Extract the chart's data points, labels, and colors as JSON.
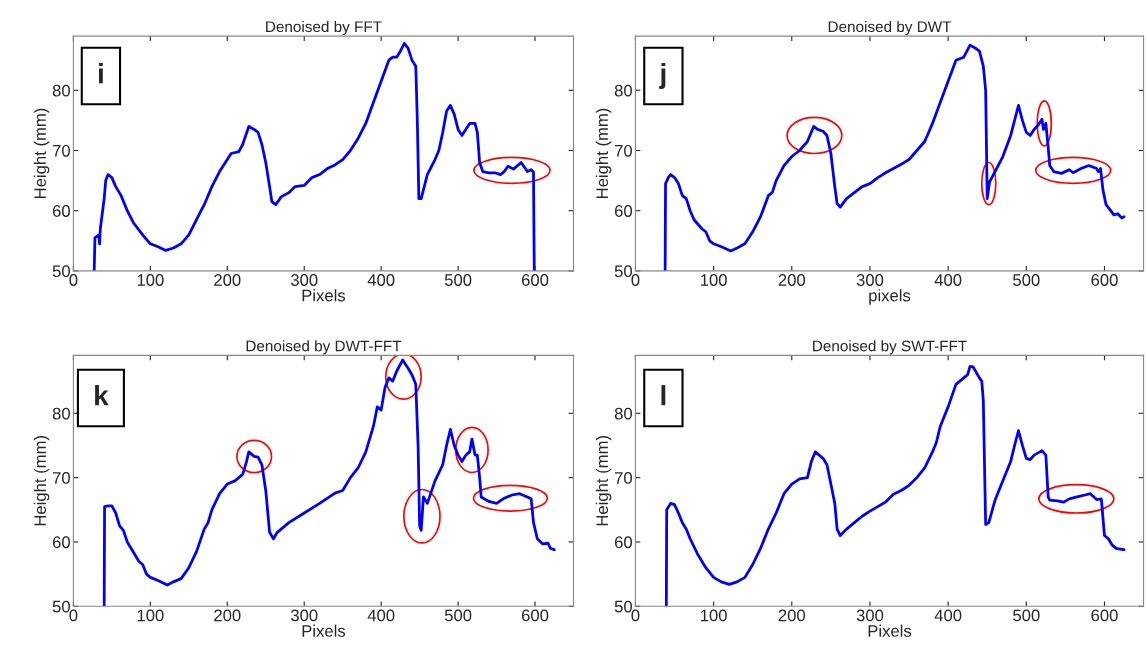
{
  "chart_data": [
    {
      "type": "line",
      "title": "Denoised by FFT",
      "xlabel": "Pixels",
      "ylabel": "Height (mm)",
      "xlim": [
        0,
        650
      ],
      "ylim": [
        50,
        89
      ],
      "xticks": [
        0,
        100,
        200,
        300,
        400,
        500,
        600
      ],
      "yticks": [
        50,
        60,
        70,
        80
      ],
      "annotations": [
        "i"
      ],
      "series": [
        {
          "color": "#0000ff",
          "x": [
            27,
            28,
            33,
            34,
            35,
            40,
            42,
            45,
            50,
            55,
            62,
            70,
            78,
            90,
            100,
            110,
            120,
            130,
            140,
            150,
            160,
            170,
            180,
            190,
            200,
            205,
            215,
            220,
            228,
            235,
            240,
            245,
            250,
            255,
            258,
            263,
            270,
            280,
            288,
            300,
            310,
            320,
            330,
            340,
            350,
            360,
            370,
            380,
            390,
            400,
            410,
            415,
            420,
            425,
            430,
            435,
            440,
            445,
            447,
            449,
            452,
            460,
            470,
            475,
            480,
            485,
            490,
            495,
            500,
            505,
            510,
            515,
            522,
            525,
            528,
            532,
            540,
            548,
            555,
            560,
            565,
            572,
            582,
            590,
            595,
            598,
            599
          ],
          "values": [
            50,
            55.5,
            56,
            54.5,
            57,
            62,
            65,
            66,
            65.5,
            64,
            62.5,
            60,
            58,
            56,
            54.5,
            54,
            53.4,
            53.8,
            54.5,
            56,
            58.5,
            61,
            64,
            66.5,
            68.5,
            69.5,
            69.8,
            71,
            74,
            73.5,
            73,
            71,
            68,
            64,
            61.5,
            61,
            62.3,
            63,
            64,
            64.2,
            65.5,
            66,
            67,
            67.6,
            68.5,
            70,
            72,
            74.5,
            78,
            81.5,
            85,
            85.5,
            85.5,
            86.5,
            87.8,
            87,
            85,
            84,
            75,
            62,
            62,
            66,
            68.5,
            70,
            73,
            76.5,
            77.5,
            76,
            73.5,
            72.5,
            73.5,
            74.5,
            74.5,
            73,
            68,
            66.5,
            66.3,
            66.3,
            66,
            66.5,
            67.4,
            66.9,
            68,
            66.5,
            66.8,
            66.4,
            50
          ]
        }
      ]
    },
    {
      "type": "line",
      "title": "Denoised by DWT",
      "xlabel": "pixels",
      "ylabel": "Height (mm)",
      "xlim": [
        0,
        650
      ],
      "ylim": [
        50,
        89
      ],
      "xticks": [
        0,
        100,
        200,
        300,
        400,
        500,
        600
      ],
      "yticks": [
        50,
        60,
        70,
        80
      ],
      "annotations": [
        "j"
      ],
      "series": [
        {
          "color": "#0000ff",
          "x": [
            38,
            38.5,
            42,
            45,
            50,
            55,
            60,
            65,
            70,
            75,
            85,
            90,
            95,
            100,
            110,
            122,
            130,
            140,
            150,
            160,
            170,
            175,
            180,
            190,
            200,
            210,
            220,
            228,
            233,
            240,
            245,
            250,
            255,
            258,
            262,
            270,
            280,
            290,
            300,
            310,
            320,
            330,
            340,
            350,
            360,
            370,
            375,
            380,
            390,
            400,
            410,
            420,
            428,
            435,
            440,
            445,
            448,
            450,
            453,
            460,
            470,
            480,
            485,
            490,
            495,
            500,
            505,
            510,
            515,
            520,
            522,
            525,
            528,
            530,
            535,
            545,
            555,
            560,
            570,
            580,
            590,
            592,
            595,
            598,
            602,
            608,
            612,
            617,
            622,
            625
          ],
          "values": [
            50,
            64.5,
            65.5,
            66,
            65.5,
            64.5,
            62.5,
            62,
            60,
            58.5,
            57,
            56.5,
            55,
            54.5,
            54,
            53.3,
            53.8,
            54.5,
            56.5,
            59,
            62.5,
            63,
            65,
            67.5,
            69,
            70,
            71.5,
            74,
            73.5,
            73.2,
            72.5,
            69.5,
            64,
            61.2,
            60.6,
            62,
            63,
            64,
            64.5,
            65.5,
            66.3,
            67,
            67.7,
            68.5,
            70,
            71.5,
            73,
            74.5,
            78,
            81.5,
            85,
            85.5,
            87.5,
            87,
            86.5,
            84,
            80,
            62,
            64.8,
            66.5,
            69,
            72.5,
            75,
            77.5,
            75,
            73,
            72.5,
            73.5,
            74.2,
            75.2,
            73.5,
            74.5,
            70.5,
            67.5,
            66.5,
            66.2,
            66.8,
            66.3,
            67,
            67.5,
            67,
            66.5,
            67,
            63.5,
            61,
            60,
            59.3,
            59.5,
            58.8,
            59
          ]
        }
      ]
    },
    {
      "type": "line",
      "title": "Denoised by DWT-FFT",
      "xlabel": "Pixels",
      "ylabel": "Height (mm)",
      "xlim": [
        0,
        650
      ],
      "ylim": [
        50,
        89
      ],
      "xticks": [
        0,
        100,
        200,
        300,
        400,
        500,
        600
      ],
      "yticks": [
        50,
        60,
        70,
        80
      ],
      "annotations": [
        "k"
      ],
      "series": [
        {
          "color": "#0000ff",
          "x": [
            40,
            40.5,
            45,
            50,
            55,
            60,
            65,
            70,
            80,
            85,
            90,
            95,
            100,
            110,
            122,
            130,
            140,
            150,
            160,
            170,
            175,
            180,
            190,
            200,
            210,
            220,
            225,
            228,
            235,
            240,
            245,
            250,
            255,
            260,
            265,
            280,
            300,
            320,
            340,
            350,
            360,
            370,
            380,
            390,
            395,
            400,
            405,
            410,
            415,
            420,
            428,
            435,
            440,
            445,
            448,
            450,
            452,
            455,
            460,
            470,
            480,
            485,
            490,
            495,
            500,
            505,
            510,
            515,
            518,
            522,
            525,
            528,
            530,
            540,
            550,
            560,
            570,
            580,
            590,
            595,
            598,
            603,
            610,
            617,
            620,
            625
          ],
          "values": [
            50,
            65.5,
            65.6,
            65.6,
            64.5,
            62.5,
            61.8,
            60,
            58,
            57,
            56.5,
            55,
            54.5,
            54,
            53.3,
            53.8,
            54.3,
            56,
            58.5,
            62,
            63,
            65,
            67.5,
            69,
            69.5,
            70.5,
            72.5,
            74,
            73.3,
            73.2,
            72,
            68,
            61.5,
            60.5,
            61.5,
            63,
            64.5,
            66,
            67.6,
            68,
            70,
            71.5,
            74,
            78,
            81,
            80.5,
            84,
            85.5,
            85,
            86.5,
            88.3,
            87,
            86,
            84.5,
            75,
            62.5,
            61.8,
            67,
            66,
            69.5,
            72,
            75,
            77.5,
            75,
            73.5,
            72.5,
            73.5,
            74,
            76,
            73.5,
            73.5,
            70,
            67,
            66.3,
            66,
            66.8,
            67.3,
            67.5,
            67,
            66.7,
            63,
            60.5,
            59.7,
            59.8,
            59,
            58.8
          ]
        }
      ]
    },
    {
      "type": "line",
      "title": "Denoised by SWT-FFT",
      "xlabel": "Pixels",
      "ylabel": "Height (mm)",
      "xlim": [
        0,
        650
      ],
      "ylim": [
        50,
        89
      ],
      "xticks": [
        0,
        100,
        200,
        300,
        400,
        500,
        600
      ],
      "yticks": [
        50,
        60,
        70,
        80
      ],
      "annotations": [
        "l"
      ],
      "series": [
        {
          "color": "#0000ff",
          "x": [
            39.5,
            40,
            45,
            50,
            55,
            60,
            65,
            70,
            80,
            90,
            100,
            110,
            120,
            130,
            140,
            150,
            160,
            170,
            180,
            190,
            200,
            210,
            220,
            225,
            230,
            240,
            245,
            250,
            255,
            258,
            262,
            270,
            280,
            290,
            300,
            310,
            320,
            330,
            340,
            350,
            360,
            370,
            380,
            385,
            390,
            400,
            410,
            420,
            425,
            428,
            432,
            440,
            443,
            445,
            448,
            452,
            460,
            470,
            480,
            485,
            490,
            495,
            500,
            505,
            510,
            520,
            525,
            528,
            530,
            540,
            548,
            555,
            565,
            575,
            582,
            590,
            596,
            600,
            605,
            610,
            615,
            620,
            625
          ],
          "values": [
            50,
            65,
            66,
            65.8,
            64.5,
            63,
            62,
            60.5,
            58,
            56,
            54.5,
            53.8,
            53.4,
            53.8,
            54.5,
            56.5,
            59,
            62,
            64.5,
            67.5,
            69,
            69.8,
            70,
            72.5,
            74,
            73,
            72,
            69,
            66,
            62,
            61,
            62,
            63,
            64,
            64.8,
            65.5,
            66.2,
            67.4,
            68,
            68.8,
            70,
            71.5,
            74,
            75.5,
            78,
            81,
            84.5,
            85.5,
            86,
            87.3,
            87.2,
            85.5,
            85,
            82,
            62.7,
            63,
            66.5,
            69.5,
            72.5,
            75,
            77.3,
            75,
            73,
            72.8,
            73.5,
            74.2,
            73.5,
            67,
            66.5,
            66.4,
            66.2,
            66.7,
            67,
            67.3,
            67.5,
            66.6,
            66.7,
            61,
            60.5,
            59.5,
            59,
            58.9,
            58.8
          ]
        }
      ]
    }
  ]
}
